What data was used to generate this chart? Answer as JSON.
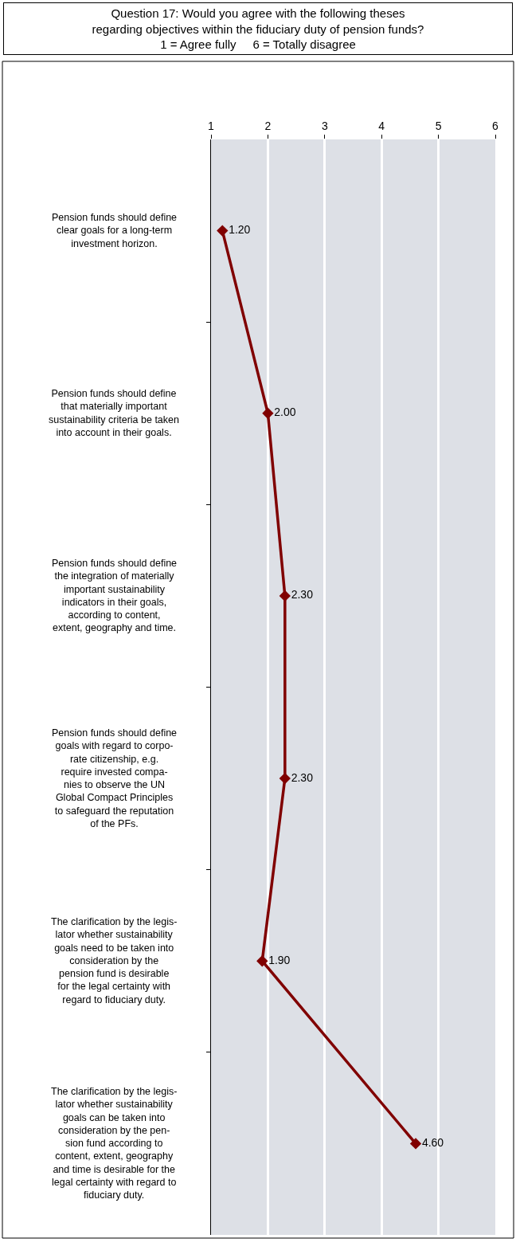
{
  "chart_data": {
    "type": "line",
    "orientation": "horizontal",
    "title": "Question 17: Would you agree with the following theses\nregarding objectives within the fiduciary duty of pension funds?\n1 = Agree fully     6 = Totally disagree",
    "categories": [
      "Pension funds should define\nclear goals for a long-term\ninvestment horizon.",
      "Pension funds should define\nthat materially important\nsustainability criteria be taken\ninto account in their goals.",
      "Pension funds should define\nthe integration of materially\nimportant sustainability\nindicators in their goals,\naccording to content,\nextent, geography and time.",
      "Pension funds should define\ngoals with regard to corpo-\nrate citizenship, e.g.\nrequire invested compa-\nnies to observe the UN\nGlobal Compact Principles\nto safeguard the reputation\nof the PFs.",
      "The clarification by the legis-\nlator whether sustainability\ngoals need to be taken into\nconsideration by the\npension fund is desirable\nfor the legal certainty with\nregard to fiduciary duty.",
      "The clarification by the legis-\nlator whether sustainability\ngoals can be taken into\nconsideration by the pen-\nsion fund according to\ncontent, extent, geography\nand time is desirable for the\nlegal certainty with regard to\nfiduciary duty."
    ],
    "series": [
      {
        "color": "#800000",
        "values": [
          1.2,
          2.0,
          2.3,
          2.3,
          1.9,
          4.6
        ],
        "value_labels": [
          "1.20",
          "2.00",
          "2.30",
          "2.30",
          "1.90",
          "4.60"
        ]
      }
    ],
    "xlim": [
      1,
      6
    ],
    "xticks": [
      1,
      2,
      3,
      4,
      5,
      6
    ],
    "grid": "x",
    "marker": "diamond",
    "line_style": "solid",
    "legend": false
  }
}
